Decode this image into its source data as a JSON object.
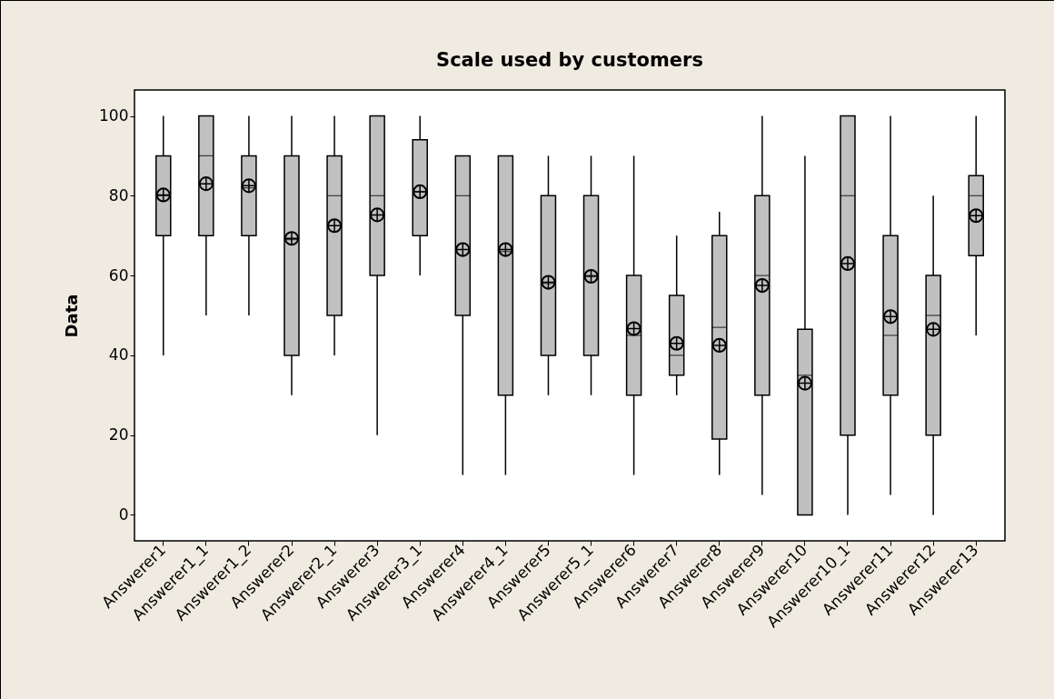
{
  "chart_data": {
    "type": "box",
    "title": "Scale used by customers",
    "ylabel": "Data",
    "categories": [
      "Answerer1",
      "Answerer1_1",
      "Answerer1_2",
      "Answerer2",
      "Answerer2_1",
      "Answerer3",
      "Answerer3_1",
      "Answerer4",
      "Answerer4_1",
      "Answerer5",
      "Answerer5_1",
      "Answerer6",
      "Answerer7",
      "Answerer8",
      "Answerer9",
      "Answerer10",
      "Answerer10_1",
      "Answerer11",
      "Answerer12",
      "Answerer13"
    ],
    "boxes": [
      {
        "low": 40,
        "q1": 70,
        "median": 80,
        "q3": 90,
        "high": 100,
        "mean": 80.2
      },
      {
        "low": 50,
        "q1": 70,
        "median": 90,
        "q3": 100,
        "high": 100,
        "mean": 83
      },
      {
        "low": 50,
        "q1": 70,
        "median": 82,
        "q3": 90,
        "high": 100,
        "mean": 82.5
      },
      {
        "low": 30,
        "q1": 40,
        "median": 69,
        "q3": 90,
        "high": 100,
        "mean": 69.3
      },
      {
        "low": 40,
        "q1": 50,
        "median": 80,
        "q3": 90,
        "high": 100,
        "mean": 72.5
      },
      {
        "low": 20,
        "q1": 60,
        "median": 80,
        "q3": 100,
        "high": 100,
        "mean": 75.2
      },
      {
        "low": 60,
        "q1": 70,
        "median": 81,
        "q3": 94,
        "high": 100,
        "mean": 81
      },
      {
        "low": 10,
        "q1": 50,
        "median": 80,
        "q3": 90,
        "high": 90,
        "mean": 66.5
      },
      {
        "low": 10,
        "q1": 30,
        "median": 66,
        "q3": 90,
        "high": 90,
        "mean": 66.5
      },
      {
        "low": 30,
        "q1": 40,
        "median": 58,
        "q3": 80,
        "high": 90,
        "mean": 58.3
      },
      {
        "low": 30,
        "q1": 40,
        "median": 60,
        "q3": 80,
        "high": 90,
        "mean": 59.8
      },
      {
        "low": 10,
        "q1": 30,
        "median": 45,
        "q3": 60,
        "high": 90,
        "mean": 46.7
      },
      {
        "low": 30,
        "q1": 35,
        "median": 40,
        "q3": 55,
        "high": 70,
        "mean": 43
      },
      {
        "low": 10,
        "q1": 19,
        "median": 47,
        "q3": 70,
        "high": 76,
        "mean": 42.5
      },
      {
        "low": 5,
        "q1": 30,
        "median": 60,
        "q3": 80,
        "high": 100,
        "mean": 57.5
      },
      {
        "low": 0,
        "q1": 0,
        "median": 35,
        "q3": 46.5,
        "high": 90,
        "mean": 33
      },
      {
        "low": 0,
        "q1": 20,
        "median": 80,
        "q3": 100,
        "high": 100,
        "mean": 63
      },
      {
        "low": 5,
        "q1": 30,
        "median": 45,
        "q3": 70,
        "high": 100,
        "mean": 49.7
      },
      {
        "low": 0,
        "q1": 20,
        "median": 50,
        "q3": 60,
        "high": 80,
        "mean": 46.5
      },
      {
        "low": 45,
        "q1": 65,
        "median": 80,
        "q3": 85,
        "high": 100,
        "mean": 75
      }
    ],
    "ylim": [
      -6.5,
      106.5
    ],
    "yticks": [
      0,
      20,
      40,
      60,
      80,
      100
    ]
  }
}
